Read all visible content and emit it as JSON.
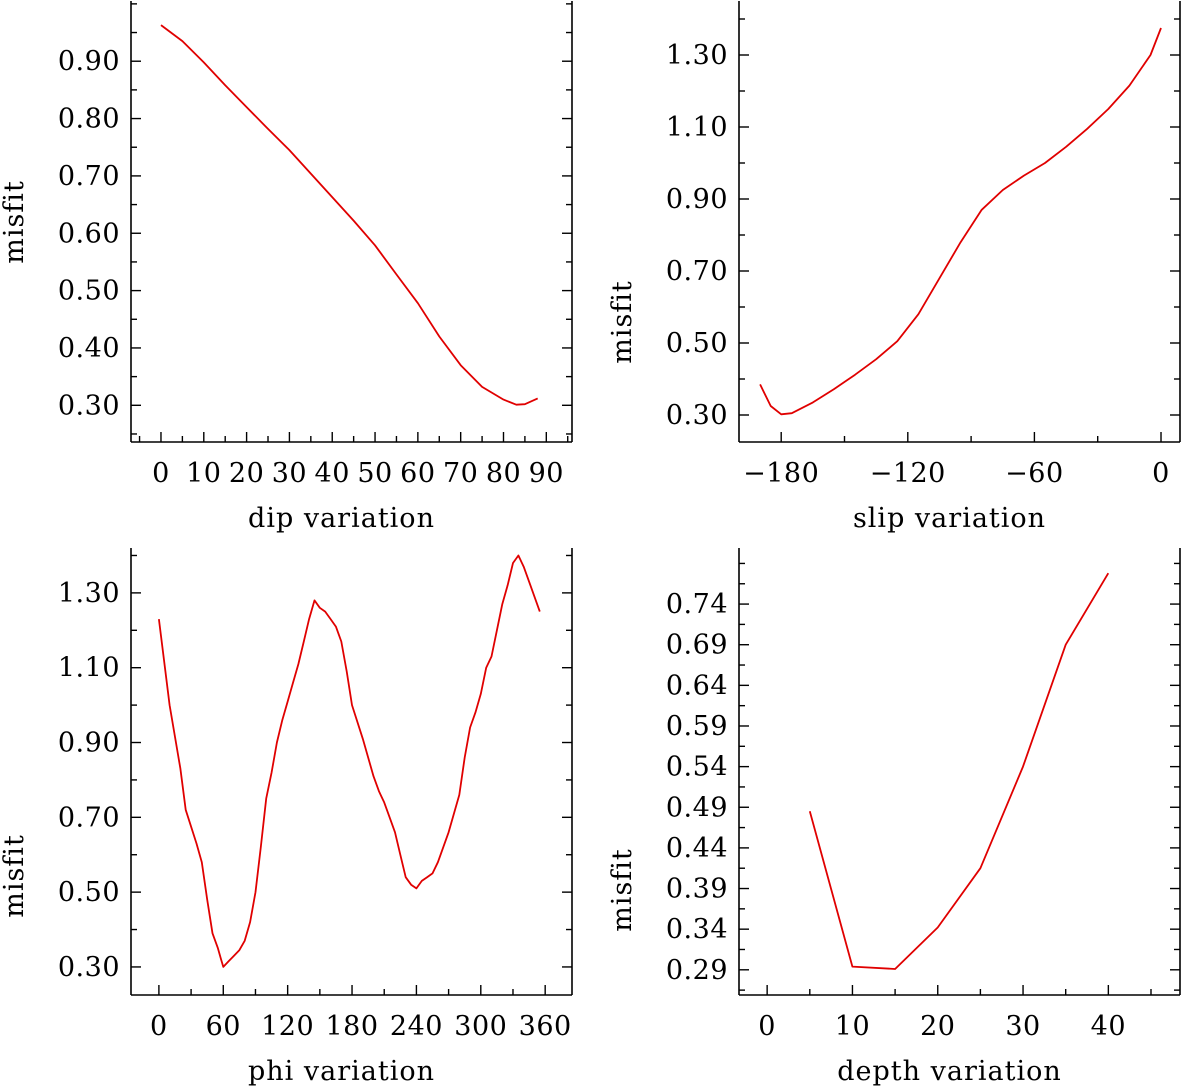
{
  "chart_data": [
    {
      "type": "line",
      "title": "",
      "xlabel": "dip    variation",
      "ylabel": "misfit",
      "xlim": [
        -7,
        96
      ],
      "ylim": [
        0.236,
        1.005
      ],
      "xticks": [
        0,
        10,
        20,
        30,
        40,
        50,
        60,
        70,
        80,
        90
      ],
      "xtick_labels": [
        "0",
        "10",
        "20",
        "30",
        "40",
        "50",
        "60",
        "70",
        "80",
        "90"
      ],
      "yticks": [
        0.3,
        0.4,
        0.5,
        0.6,
        0.7,
        0.8,
        0.9
      ],
      "ytick_labels": [
        "0.30",
        "0.40",
        "0.50",
        "0.60",
        "0.70",
        "0.80",
        "0.90"
      ],
      "series": [
        {
          "name": "misfit",
          "x": [
            0,
            5,
            10,
            15,
            20,
            25,
            30,
            35,
            40,
            45,
            50,
            55,
            60,
            65,
            70,
            75,
            80,
            83,
            85,
            88
          ],
          "y": [
            0.963,
            0.935,
            0.898,
            0.858,
            0.82,
            0.782,
            0.745,
            0.704,
            0.663,
            0.622,
            0.579,
            0.528,
            0.478,
            0.42,
            0.37,
            0.332,
            0.31,
            0.301,
            0.302,
            0.312
          ]
        }
      ]
    },
    {
      "type": "line",
      "title": "",
      "xlabel": "slip   variation",
      "ylabel": "misfit",
      "xlim": [
        -200,
        9
      ],
      "ylim": [
        0.225,
        1.45
      ],
      "xticks": [
        -180,
        -120,
        -60,
        0
      ],
      "xtick_labels": [
        "−180",
        "−120",
        "−60",
        "0"
      ],
      "yticks": [
        0.3,
        0.5,
        0.7,
        0.9,
        1.1,
        1.3
      ],
      "ytick_labels": [
        "0.30",
        "0.50",
        "0.70",
        "0.90",
        "1.10",
        "1.30"
      ],
      "series": [
        {
          "name": "misfit",
          "x": [
            -190,
            -185,
            -180,
            -175,
            -165,
            -155,
            -145,
            -135,
            -125,
            -115,
            -105,
            -95,
            -85,
            -75,
            -65,
            -55,
            -45,
            -35,
            -25,
            -15,
            -5,
            0
          ],
          "y": [
            0.385,
            0.325,
            0.302,
            0.305,
            0.335,
            0.372,
            0.412,
            0.455,
            0.505,
            0.58,
            0.68,
            0.78,
            0.87,
            0.925,
            0.965,
            1.0,
            1.045,
            1.095,
            1.15,
            1.215,
            1.3,
            1.375
          ]
        }
      ]
    },
    {
      "type": "line",
      "title": "",
      "xlabel": "phi     variation",
      "ylabel": "misfit",
      "xlim": [
        -26,
        385
      ],
      "ylim": [
        0.225,
        1.42
      ],
      "xticks": [
        0,
        60,
        120,
        180,
        240,
        300,
        360
      ],
      "xtick_labels": [
        "0",
        "60",
        "120",
        "180",
        "240",
        "300",
        "360"
      ],
      "yticks": [
        0.3,
        0.5,
        0.7,
        0.9,
        1.1,
        1.3
      ],
      "ytick_labels": [
        "0.30",
        "0.50",
        "0.70",
        "0.90",
        "1.10",
        "1.30"
      ],
      "series": [
        {
          "name": "misfit",
          "x": [
            0,
            10,
            20,
            25,
            35,
            40,
            45,
            50,
            55,
            58,
            60,
            65,
            70,
            75,
            80,
            85,
            90,
            95,
            100,
            105,
            110,
            115,
            120,
            125,
            130,
            135,
            140,
            145,
            150,
            155,
            160,
            165,
            170,
            175,
            180,
            190,
            200,
            205,
            210,
            215,
            220,
            225,
            230,
            235,
            240,
            245,
            250,
            255,
            260,
            270,
            280,
            285,
            290,
            295,
            300,
            305,
            310,
            315,
            320,
            325,
            330,
            335,
            340,
            345,
            355
          ],
          "y": [
            1.23,
            1.0,
            0.83,
            0.72,
            0.63,
            0.58,
            0.48,
            0.39,
            0.35,
            0.32,
            0.3,
            0.315,
            0.33,
            0.345,
            0.37,
            0.42,
            0.5,
            0.62,
            0.75,
            0.82,
            0.9,
            0.96,
            1.01,
            1.06,
            1.11,
            1.17,
            1.23,
            1.28,
            1.26,
            1.25,
            1.23,
            1.21,
            1.17,
            1.09,
            1.0,
            0.91,
            0.81,
            0.77,
            0.74,
            0.7,
            0.66,
            0.6,
            0.54,
            0.52,
            0.51,
            0.53,
            0.54,
            0.55,
            0.58,
            0.66,
            0.76,
            0.86,
            0.94,
            0.98,
            1.03,
            1.1,
            1.13,
            1.2,
            1.27,
            1.32,
            1.38,
            1.4,
            1.37,
            1.33,
            1.25
          ]
        }
      ]
    },
    {
      "type": "line",
      "title": "",
      "xlabel": "depth  variation",
      "ylabel": "misfit",
      "xlim": [
        -3.3,
        48.4
      ],
      "ylim": [
        0.259,
        0.809
      ],
      "xticks": [
        0,
        10,
        20,
        30,
        40
      ],
      "xtick_labels": [
        "0",
        "10",
        "20",
        "30",
        "40"
      ],
      "yticks": [
        0.29,
        0.34,
        0.39,
        0.44,
        0.49,
        0.54,
        0.59,
        0.64,
        0.69,
        0.74
      ],
      "ytick_labels": [
        "0.29",
        "0.34",
        "0.39",
        "0.44",
        "0.49",
        "0.54",
        "0.59",
        "0.64",
        "0.69",
        "0.74"
      ],
      "series": [
        {
          "name": "misfit",
          "x": [
            5,
            10,
            15,
            20,
            25,
            30,
            35,
            40
          ],
          "y": [
            0.485,
            0.294,
            0.291,
            0.342,
            0.415,
            0.54,
            0.69,
            0.778
          ]
        }
      ]
    }
  ]
}
